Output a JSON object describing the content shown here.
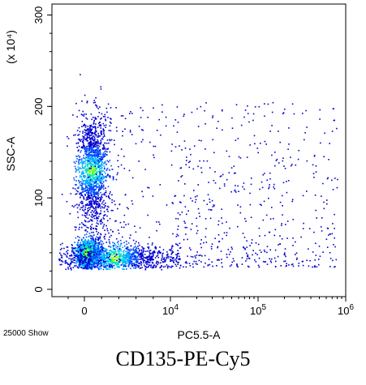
{
  "chart_data": {
    "type": "heatmap",
    "subtype": "flow-cytometry-density-dot-plot",
    "xlabel": "PC5.5-A",
    "ylabel": "SSC-A",
    "y_scale_note": "(x 10⁴)",
    "caption": "CD135-PE-Cy5",
    "event_count_label": "25000 Show",
    "x_scale": "biexponential",
    "x_range": [
      -4000,
      1000000
    ],
    "y_range": [
      -8,
      312
    ],
    "x_ticks": [
      {
        "value": 0,
        "base": "0",
        "exp": ""
      },
      {
        "value": 10000,
        "base": "10",
        "exp": "4"
      },
      {
        "value": 100000,
        "base": "10",
        "exp": "5"
      },
      {
        "value": 1000000,
        "base": "10",
        "exp": "6"
      }
    ],
    "y_ticks": [
      {
        "value": 0,
        "label": "0"
      },
      {
        "value": 100,
        "label": "100"
      },
      {
        "value": 200,
        "label": "200"
      },
      {
        "value": 300,
        "label": "300"
      }
    ],
    "density_colors": [
      "#0000d0",
      "#0050ff",
      "#00b0ff",
      "#00e0c0",
      "#40ff40",
      "#c0ff00"
    ],
    "populations": [
      {
        "name": "",
        "x_center": 800,
        "y_center": 130,
        "x_spread": 900,
        "y_spread": 30,
        "count": 1400
      },
      {
        "name": "",
        "x_center": 300,
        "y_center": 40,
        "x_spread": 700,
        "y_spread": 8,
        "count": 900
      },
      {
        "name": "",
        "x_center": 3500,
        "y_center": 35,
        "x_spread": 3500,
        "y_spread": 7,
        "count": 1200
      },
      {
        "name": "",
        "x_center": 20000,
        "y_center": 80,
        "x_spread": 40000,
        "y_spread": 45,
        "count": 900
      }
    ]
  }
}
